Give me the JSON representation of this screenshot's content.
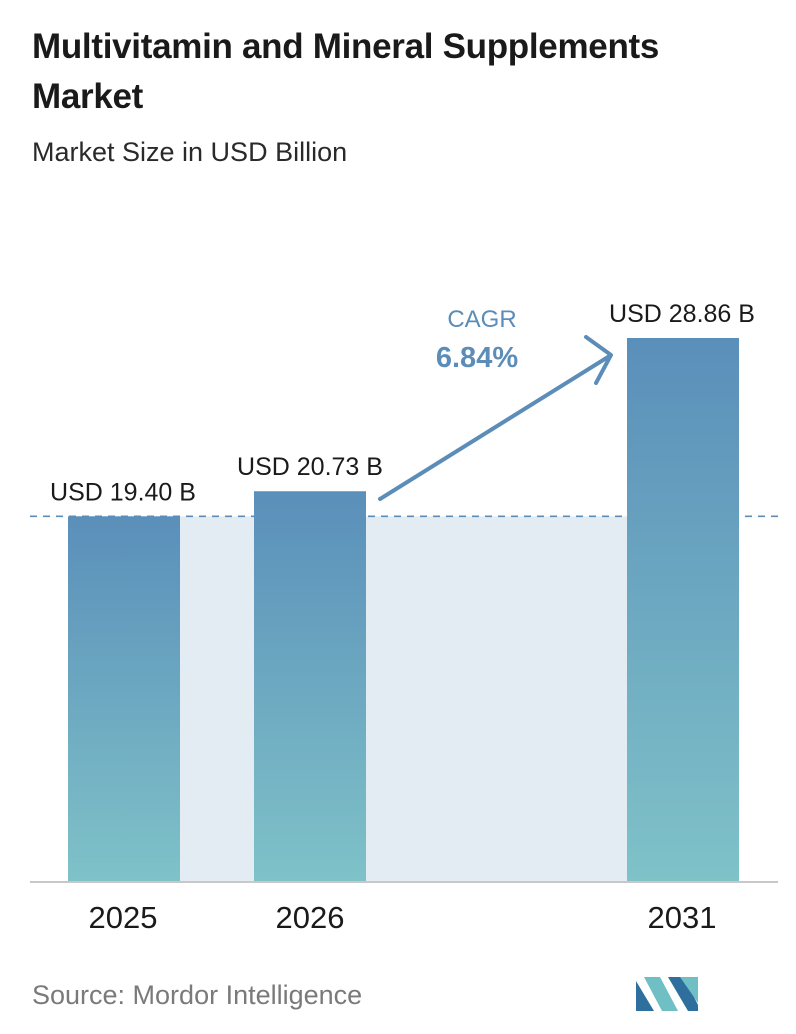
{
  "chart_data": {
    "type": "bar",
    "title": "Multivitamin and Mineral Supplements Market",
    "subtitle": "Market Size in USD Billion",
    "categories": [
      "2025",
      "2026",
      "2031"
    ],
    "values": [
      19.4,
      20.73,
      28.86
    ],
    "value_labels": [
      "USD 19.40 B",
      "USD 20.73 B",
      "USD 28.86 B"
    ],
    "ylim": [
      0,
      30
    ],
    "unit": "USD Billion",
    "xlabel": "",
    "ylabel": "",
    "grid": false,
    "reference_line_value": 19.4,
    "annotation": {
      "label": "CAGR",
      "value": "6.84%"
    }
  },
  "footer": {
    "source": "Source:  Mordor Intelligence"
  },
  "colors": {
    "bar_top": "#5a8fba",
    "bar_bottom": "#7fc2c8",
    "band": "#e3ebf3",
    "accent": "#5b8db8",
    "axis": "#c8c8c8",
    "logo_dark": "#2e6f9e",
    "logo_light": "#6fbfc5"
  },
  "icons": {
    "logo": "mordor-intelligence-logo-icon"
  }
}
